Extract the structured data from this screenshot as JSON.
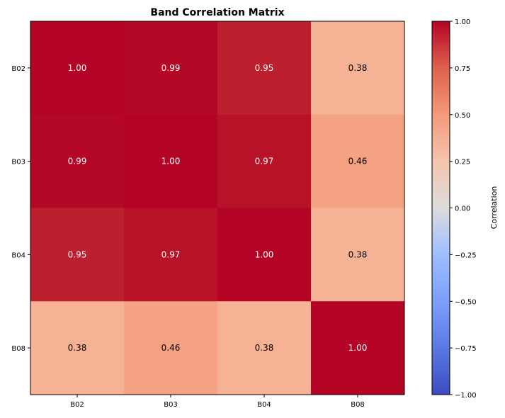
{
  "chart_data": {
    "type": "heatmap",
    "title": "Band Correlation Matrix",
    "xlabel": "",
    "ylabel": "",
    "x_categories": [
      "B02",
      "B03",
      "B04",
      "B08"
    ],
    "y_categories": [
      "B02",
      "B03",
      "B04",
      "B08"
    ],
    "values": [
      [
        1.0,
        0.99,
        0.95,
        0.38
      ],
      [
        0.99,
        1.0,
        0.97,
        0.46
      ],
      [
        0.95,
        0.97,
        1.0,
        0.38
      ],
      [
        0.38,
        0.46,
        0.38,
        1.0
      ]
    ],
    "value_labels": [
      [
        "1.00",
        "0.99",
        "0.95",
        "0.38"
      ],
      [
        "0.99",
        "1.00",
        "0.97",
        "0.46"
      ],
      [
        "0.95",
        "0.97",
        "1.00",
        "0.38"
      ],
      [
        "0.38",
        "0.46",
        "0.38",
        "1.00"
      ]
    ],
    "colormap": "coolwarm",
    "vmin": -1.0,
    "vmax": 1.0,
    "colorbar": {
      "label": "Correlation",
      "ticks": [
        1.0,
        0.75,
        0.5,
        0.25,
        0.0,
        -0.25,
        -0.5,
        -0.75,
        -1.0
      ],
      "tick_labels": [
        "1.00",
        "0.75",
        "0.50",
        "0.25",
        "0.00",
        "−0.25",
        "−0.50",
        "−0.75",
        "−1.00"
      ]
    },
    "grid": false
  }
}
